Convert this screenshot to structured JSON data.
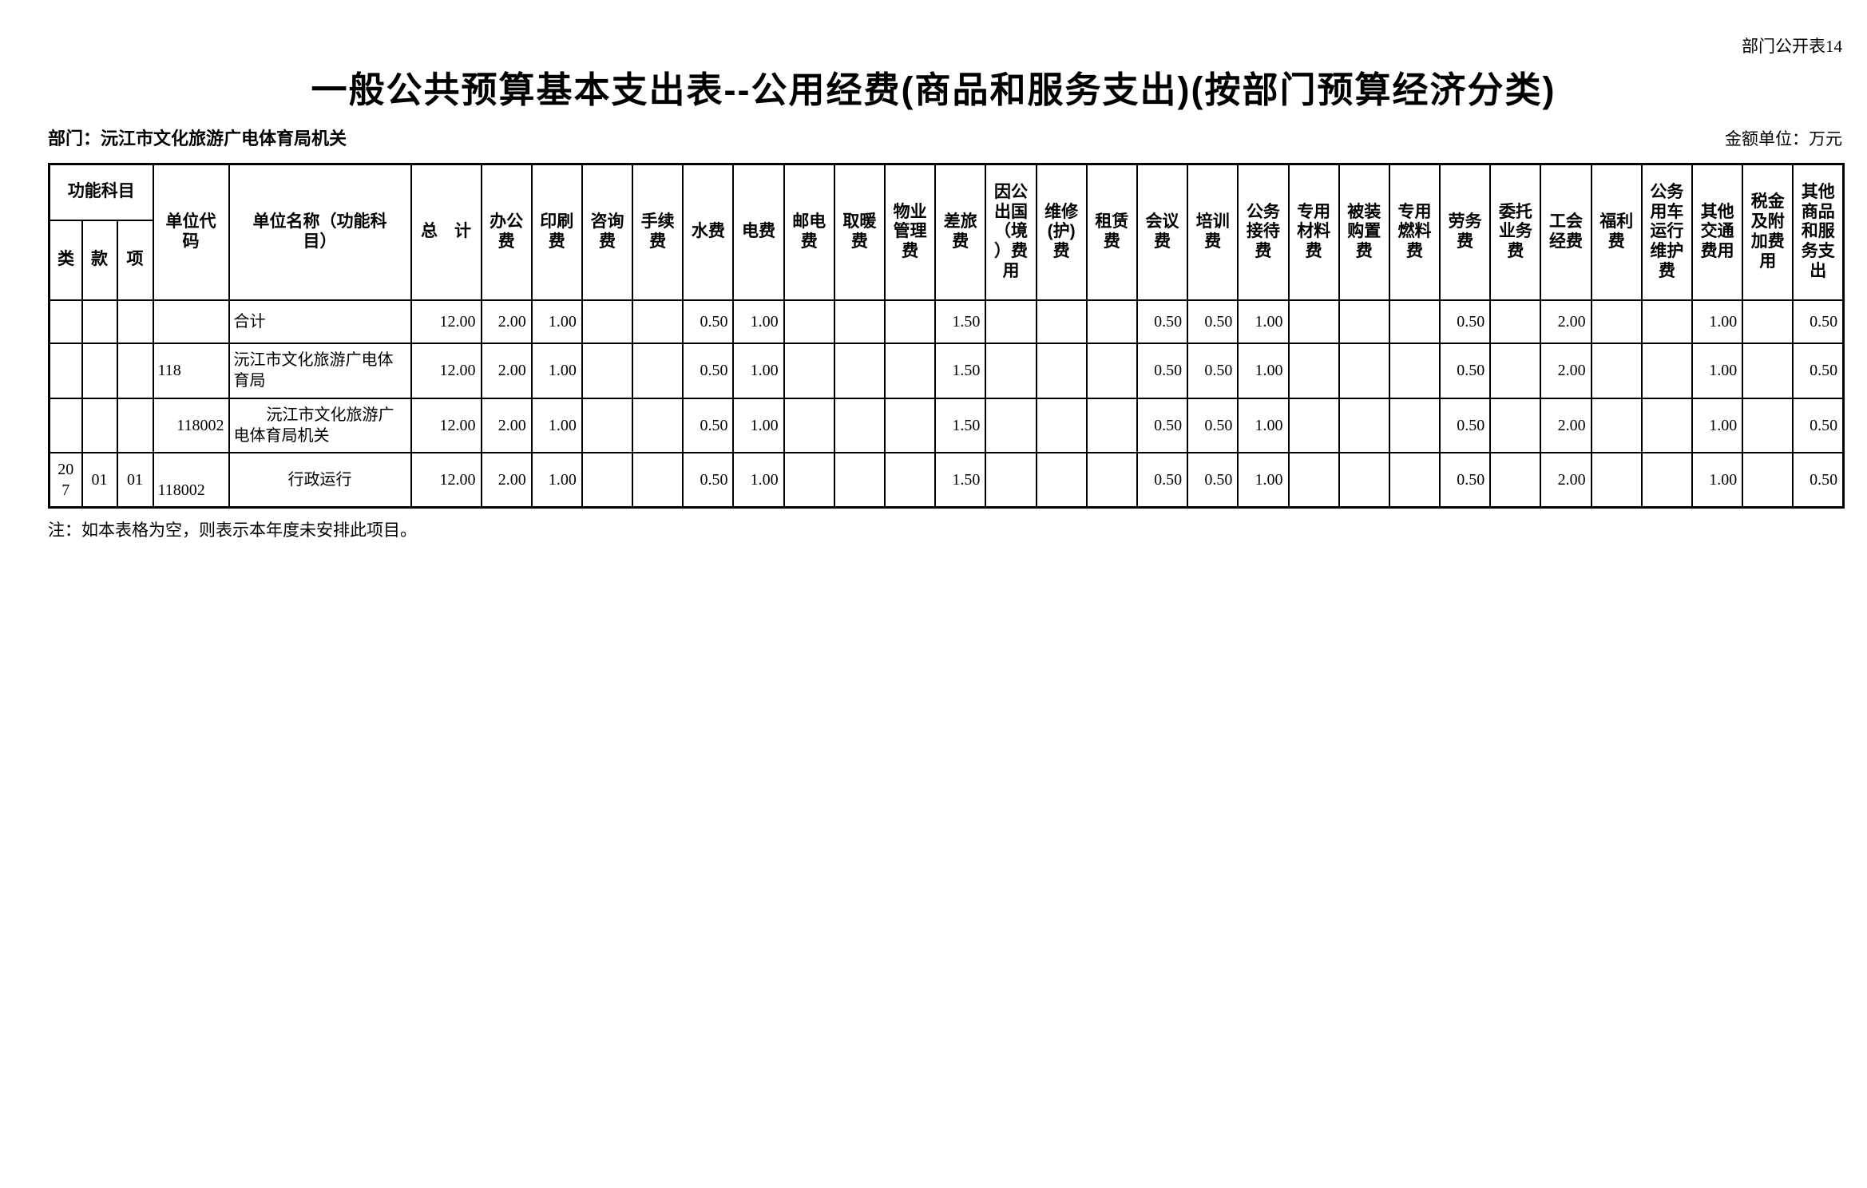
{
  "meta": {
    "table_code": "部门公开表14",
    "title": "一般公共预算基本支出表--公用经费(商品和服务支出)(按部门预算经济分类)",
    "department_label": "部门：沅江市文化旅游广电体育局机关",
    "unit_label": "金额单位：万元",
    "note": "注：如本表格为空，则表示本年度未安排此项目。"
  },
  "table": {
    "header": {
      "func_group": "功能科目",
      "func_cols": [
        "类",
        "款",
        "项"
      ],
      "unit_code": "单位代码",
      "unit_name": "单位名称（功能科目）",
      "total": "总　计",
      "fee_cols": [
        "办公费",
        "印刷费",
        "咨询费",
        "手续费",
        "水费",
        "电费",
        "邮电费",
        "取暖费",
        "物业管理费",
        "差旅费",
        "因公出国（境）费用",
        "维修(护)费",
        "租赁费",
        "会议费",
        "培训费",
        "公务接待费",
        "专用材料费",
        "被装购置费",
        "专用燃料费",
        "劳务费",
        "委托业务费",
        "工会经费",
        "福利费",
        "公务用车运行维护费",
        "其他交通费用",
        "税金及附加费用",
        "其他商品和服务支出"
      ]
    },
    "rows": [
      {
        "lei": "",
        "kuan": "",
        "xiang": "",
        "code": "",
        "name": "合计",
        "values": [
          "12.00",
          "2.00",
          "1.00",
          "",
          "",
          "0.50",
          "1.00",
          "",
          "",
          "",
          "1.50",
          "",
          "",
          "",
          "0.50",
          "0.50",
          "1.00",
          "",
          "",
          "",
          "0.50",
          "",
          "2.00",
          "",
          "",
          "1.00",
          "",
          "0.50"
        ]
      },
      {
        "lei": "",
        "kuan": "",
        "xiang": "",
        "code": "118",
        "name": "沅江市文化旅游广电体育局",
        "values": [
          "12.00",
          "2.00",
          "1.00",
          "",
          "",
          "0.50",
          "1.00",
          "",
          "",
          "",
          "1.50",
          "",
          "",
          "",
          "0.50",
          "0.50",
          "1.00",
          "",
          "",
          "",
          "0.50",
          "",
          "2.00",
          "",
          "",
          "1.00",
          "",
          "0.50"
        ]
      },
      {
        "lei": "",
        "kuan": "",
        "xiang": "",
        "code": "118002",
        "name": "沅江市文化旅游广电体育局机关",
        "values": [
          "12.00",
          "2.00",
          "1.00",
          "",
          "",
          "0.50",
          "1.00",
          "",
          "",
          "",
          "1.50",
          "",
          "",
          "",
          "0.50",
          "0.50",
          "1.00",
          "",
          "",
          "",
          "0.50",
          "",
          "2.00",
          "",
          "",
          "1.00",
          "",
          "0.50"
        ]
      },
      {
        "lei": "207",
        "kuan": "01",
        "xiang": "01",
        "code": "118002",
        "name": "行政运行",
        "values": [
          "12.00",
          "2.00",
          "1.00",
          "",
          "",
          "0.50",
          "1.00",
          "",
          "",
          "",
          "1.50",
          "",
          "",
          "",
          "0.50",
          "0.50",
          "1.00",
          "",
          "",
          "",
          "0.50",
          "",
          "2.00",
          "",
          "",
          "1.00",
          "",
          "0.50"
        ]
      }
    ]
  }
}
